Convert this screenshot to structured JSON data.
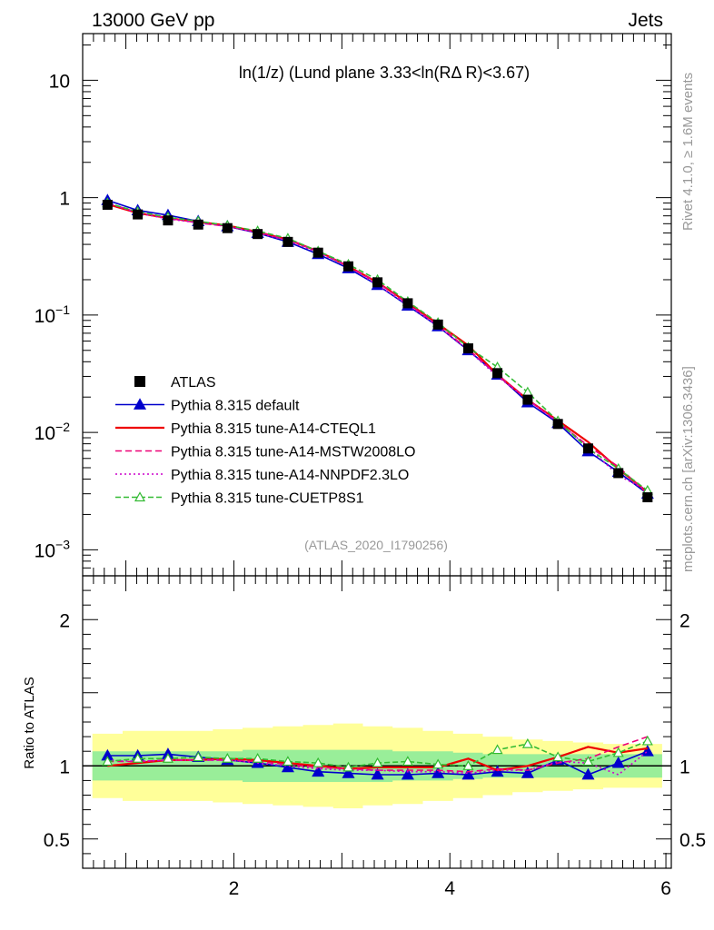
{
  "header": {
    "left": "13000 GeV pp",
    "right": "Jets"
  },
  "side": {
    "top": "Rivet 4.1.0, ≥ 1.6M events",
    "bottom": "mcplots.cern.ch [arXiv:1306.3436]"
  },
  "main": {
    "title": "ln(1/z) (Lund plane 3.33<ln(RΔ R)<3.67)",
    "ref": "(ATLAS_2020_I1790256)"
  },
  "ratio": {
    "ylabel": "Ratio to ATLAS"
  },
  "chart_data": {
    "type": "line",
    "x": [
      0.83,
      1.11,
      1.39,
      1.67,
      1.94,
      2.22,
      2.5,
      2.78,
      3.06,
      3.33,
      3.61,
      3.89,
      4.17,
      4.44,
      4.72,
      5.0,
      5.28,
      5.56,
      5.83
    ],
    "xlim": [
      0.6,
      6.05
    ],
    "ylim": [
      0.0006,
      25
    ],
    "yscale": "log",
    "ratio_ylim": [
      0.3,
      2.3
    ],
    "x_ticks": [
      {
        "v": 2,
        "label": "2"
      },
      {
        "v": 4,
        "label": "4"
      },
      {
        "v": 6,
        "label": "6"
      }
    ],
    "y_ticks": [
      {
        "v": 10,
        "base": "10",
        "exp": ""
      },
      {
        "v": 1,
        "base": "1",
        "exp": ""
      },
      {
        "v": 0.1,
        "base": "10",
        "exp": "−1"
      },
      {
        "v": 0.01,
        "base": "10",
        "exp": "−2"
      },
      {
        "v": 0.001,
        "base": "10",
        "exp": "−3"
      }
    ],
    "ratio_ticks": [
      {
        "v": 0.5,
        "label": "0.5"
      },
      {
        "v": 1,
        "label": "1"
      },
      {
        "v": 2,
        "label": "2"
      }
    ],
    "ref_band_inner": [
      0.1,
      0.1,
      0.1,
      0.1,
      0.1,
      0.11,
      0.11,
      0.11,
      0.11,
      0.11,
      0.1,
      0.1,
      0.09,
      0.08,
      0.08,
      0.08,
      0.08,
      0.08,
      0.08
    ],
    "ref_band_outer": [
      0.22,
      0.24,
      0.24,
      0.24,
      0.25,
      0.26,
      0.27,
      0.28,
      0.29,
      0.27,
      0.26,
      0.24,
      0.22,
      0.2,
      0.18,
      0.17,
      0.16,
      0.15,
      0.15
    ],
    "series": [
      {
        "name": "ATLAS",
        "color": "#000000",
        "marker": "square",
        "values": [
          0.87,
          0.72,
          0.64,
          0.59,
          0.55,
          0.49,
          0.42,
          0.34,
          0.26,
          0.19,
          0.126,
          0.083,
          0.052,
          0.032,
          0.019,
          0.0118,
          0.0073,
          0.0045,
          0.0028
        ]
      },
      {
        "name": "Pythia 8.315 default",
        "color": "#0000cc",
        "dash": "",
        "marker": "triangle",
        "values": [
          0.95,
          0.78,
          0.71,
          0.63,
          0.57,
          0.5,
          0.42,
          0.33,
          0.25,
          0.18,
          0.12,
          0.08,
          0.05,
          0.031,
          0.018,
          0.012,
          0.0069,
          0.0046,
          0.003
        ],
        "ratio": [
          1.07,
          1.07,
          1.08,
          1.06,
          1.04,
          1.02,
          0.99,
          0.96,
          0.95,
          0.94,
          0.94,
          0.95,
          0.94,
          0.96,
          0.95,
          1.04,
          0.94,
          1.02,
          1.1
        ]
      },
      {
        "name": "Pythia 8.315 tune-A14-CTEQL1",
        "color": "#ee0000",
        "dash": "",
        "marker": "",
        "values": [
          0.88,
          0.74,
          0.67,
          0.62,
          0.58,
          0.51,
          0.44,
          0.35,
          0.26,
          0.19,
          0.127,
          0.084,
          0.055,
          0.031,
          0.019,
          0.0126,
          0.0083,
          0.0049,
          0.0031
        ],
        "ratio": [
          1.0,
          1.02,
          1.04,
          1.04,
          1.05,
          1.04,
          1.02,
          1.0,
          0.98,
          0.99,
          0.99,
          0.99,
          1.05,
          0.97,
          1.0,
          1.06,
          1.13,
          1.09,
          1.12
        ]
      },
      {
        "name": "Pythia 8.315 tune-A14-MSTW2008LO",
        "color": "#ee0077",
        "dash": "7,4",
        "marker": "",
        "values": [
          0.9,
          0.75,
          0.67,
          0.61,
          0.57,
          0.51,
          0.44,
          0.35,
          0.26,
          0.19,
          0.125,
          0.082,
          0.051,
          0.031,
          0.019,
          0.0122,
          0.0077,
          0.0051,
          0.003
        ],
        "ratio": [
          1.03,
          1.03,
          1.04,
          1.04,
          1.04,
          1.03,
          1.01,
          0.99,
          0.98,
          0.97,
          0.97,
          0.97,
          0.96,
          0.98,
          0.97,
          1.02,
          1.05,
          1.13,
          1.2
        ]
      },
      {
        "name": "Pythia 8.315 tune-A14-NNPDF2.3LO",
        "color": "#cc00cc",
        "dash": "2,3",
        "marker": "",
        "values": [
          0.9,
          0.74,
          0.66,
          0.61,
          0.57,
          0.5,
          0.43,
          0.34,
          0.26,
          0.18,
          0.122,
          0.08,
          0.05,
          0.03,
          0.019,
          0.0123,
          0.0075,
          0.0043,
          0.0032
        ],
        "ratio": [
          1.04,
          1.03,
          1.04,
          1.04,
          1.04,
          1.02,
          1.0,
          0.98,
          0.97,
          0.97,
          0.96,
          0.96,
          0.95,
          0.97,
          0.97,
          1.03,
          1.02,
          0.94,
          1.1
        ]
      },
      {
        "name": "Pythia 8.315 tune-CUETP8S1",
        "color": "#33bb33",
        "dash": "6,3",
        "marker": "open-triangle",
        "values": [
          0.9,
          0.76,
          0.68,
          0.63,
          0.58,
          0.52,
          0.45,
          0.35,
          0.27,
          0.2,
          0.13,
          0.086,
          0.053,
          0.036,
          0.022,
          0.0125,
          0.0073,
          0.0049,
          0.0032
        ],
        "ratio": [
          1.03,
          1.05,
          1.05,
          1.06,
          1.05,
          1.05,
          1.03,
          1.02,
          0.99,
          1.02,
          1.03,
          1.01,
          1.0,
          1.11,
          1.15,
          1.06,
          1.03,
          1.09,
          1.17
        ]
      }
    ]
  }
}
